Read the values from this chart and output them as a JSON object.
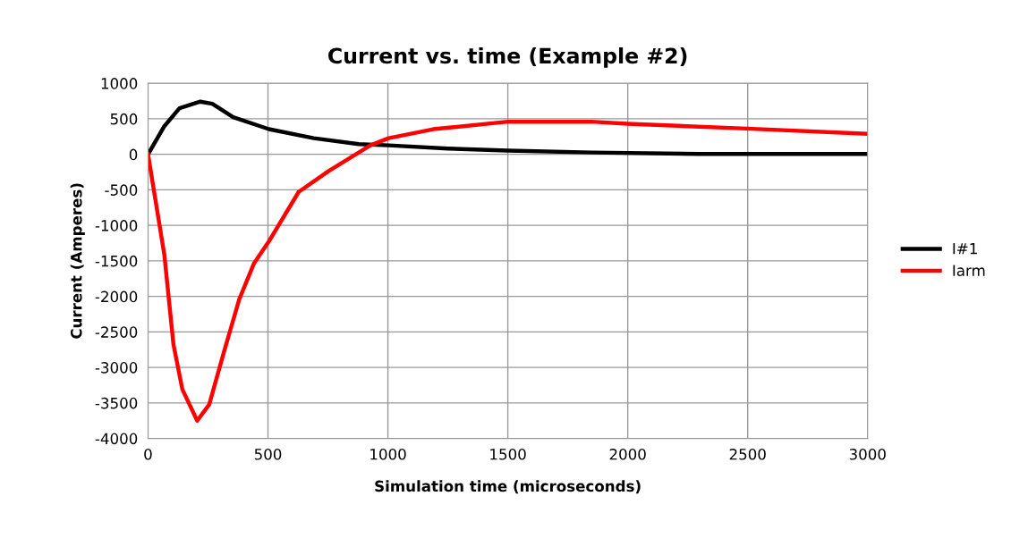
{
  "chart_data": {
    "type": "line",
    "title": "Current vs. time (Example #2)",
    "xlabel": "Simulation time (microseconds)",
    "ylabel": "Current (Amperes)",
    "xlim": [
      0,
      3000
    ],
    "xticks": [
      0,
      500,
      1000,
      1500,
      2000,
      2500,
      3000
    ],
    "ylim": [
      -4000,
      1000
    ],
    "yticks": [
      -4000,
      -3500,
      -3000,
      -2500,
      -2000,
      -1500,
      -1000,
      -500,
      0,
      500,
      1000
    ],
    "grid": true,
    "legend": "right",
    "marker": "none",
    "line_style": "solid",
    "series": [
      {
        "name": "I#1",
        "color": "#000000",
        "x": [
          0,
          68,
          131,
          218,
          268,
          355,
          504,
          691,
          878,
          1003,
          1251,
          1500,
          1849,
          2297,
          3000
        ],
        "values": [
          0,
          395,
          648,
          741,
          711,
          521,
          354,
          227,
          143,
          126,
          80,
          51,
          25,
          5,
          5
        ]
      },
      {
        "name": "Iarm",
        "color": "#ff0000",
        "x": [
          0,
          68,
          106,
          143,
          205,
          255,
          318,
          380,
          441,
          504,
          628,
          753,
          927,
          1003,
          1189,
          1500,
          1849,
          1998,
          2496,
          2995
        ],
        "values": [
          0,
          -1414,
          -2677,
          -3308,
          -3750,
          -3523,
          -2765,
          -2045,
          -1540,
          -1225,
          -530,
          -236,
          126,
          227,
          353,
          459,
          459,
          429,
          362,
          290
        ]
      }
    ]
  }
}
